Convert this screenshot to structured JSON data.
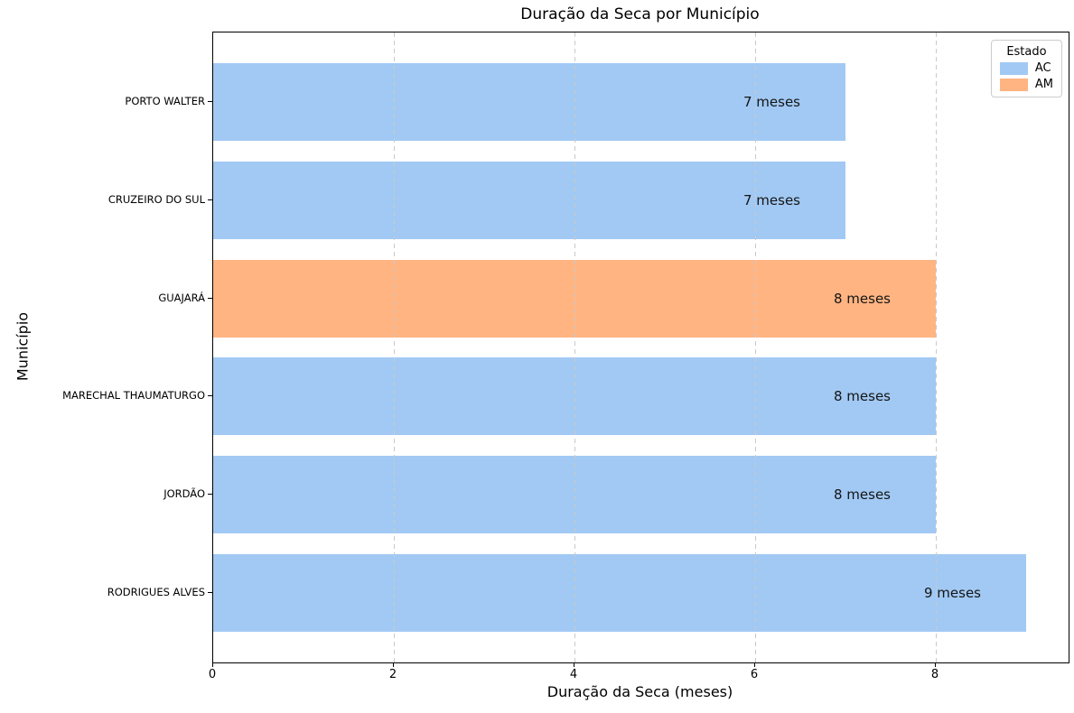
{
  "chart_data": {
    "type": "bar",
    "orientation": "horizontal",
    "title": "Duração da Seca por Município",
    "xlabel": "Duração da Seca (meses)",
    "ylabel": "Município",
    "categories": [
      "PORTO WALTER",
      "CRUZEIRO DO SUL",
      "GUAJARÁ",
      "MARECHAL THAUMATURGO",
      "JORDÃO",
      "RODRIGUES ALVES"
    ],
    "values": [
      7,
      7,
      8,
      8,
      8,
      9
    ],
    "series_state": [
      "AC",
      "AC",
      "AM",
      "AC",
      "AC",
      "AC"
    ],
    "bar_labels": [
      "7 meses",
      "7 meses",
      "8 meses",
      "8 meses",
      "8 meses",
      "9 meses"
    ],
    "x_ticks": [
      0,
      2,
      4,
      6,
      8
    ],
    "xlim": [
      0,
      9.47
    ],
    "grid": {
      "axis": "x",
      "style": "dashed",
      "color": "#c9c9c9"
    },
    "colors": {
      "AC": "#a1c9f4",
      "AM": "#ffb482"
    },
    "legend": {
      "title": "Estado",
      "position": "upper right",
      "entries": [
        {
          "label": "AC",
          "color": "#a1c9f4"
        },
        {
          "label": "AM",
          "color": "#ffb482"
        }
      ]
    }
  }
}
